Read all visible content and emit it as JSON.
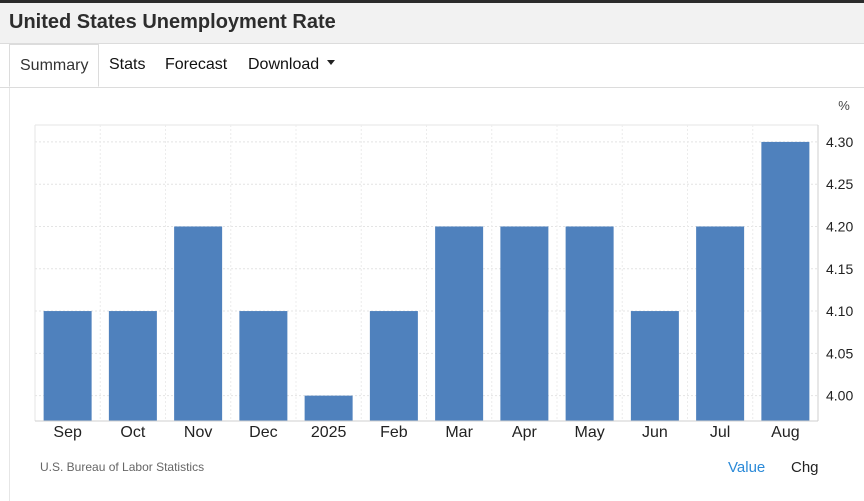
{
  "header": {
    "title": "United States Unemployment Rate"
  },
  "tabs": [
    {
      "label": "Summary",
      "active": true
    },
    {
      "label": "Stats",
      "active": false
    },
    {
      "label": "Forecast",
      "active": false
    },
    {
      "label": "Download",
      "active": false,
      "dropdown": true
    }
  ],
  "footer": {
    "source": "U.S. Bureau of Labor Statistics",
    "value_toggle": "Value",
    "chg_toggle": "Chg"
  },
  "colors": {
    "bar": "#4f81bd",
    "accent_link": "#2b8ad8"
  },
  "chart_data": {
    "type": "bar",
    "title": "",
    "xlabel": "",
    "ylabel": "%",
    "categories": [
      "Sep",
      "Oct",
      "Nov",
      "Dec",
      "2025",
      "Feb",
      "Mar",
      "Apr",
      "May",
      "Jun",
      "Jul",
      "Aug"
    ],
    "values": [
      4.1,
      4.1,
      4.2,
      4.1,
      4.0,
      4.1,
      4.2,
      4.2,
      4.2,
      4.1,
      4.2,
      4.3
    ],
    "ylim": [
      3.97,
      4.32
    ],
    "yticks": [
      "4.00",
      "4.05",
      "4.10",
      "4.15",
      "4.20",
      "4.25",
      "4.30"
    ],
    "y_axis_side": "right",
    "grid": true,
    "legend": "none"
  }
}
